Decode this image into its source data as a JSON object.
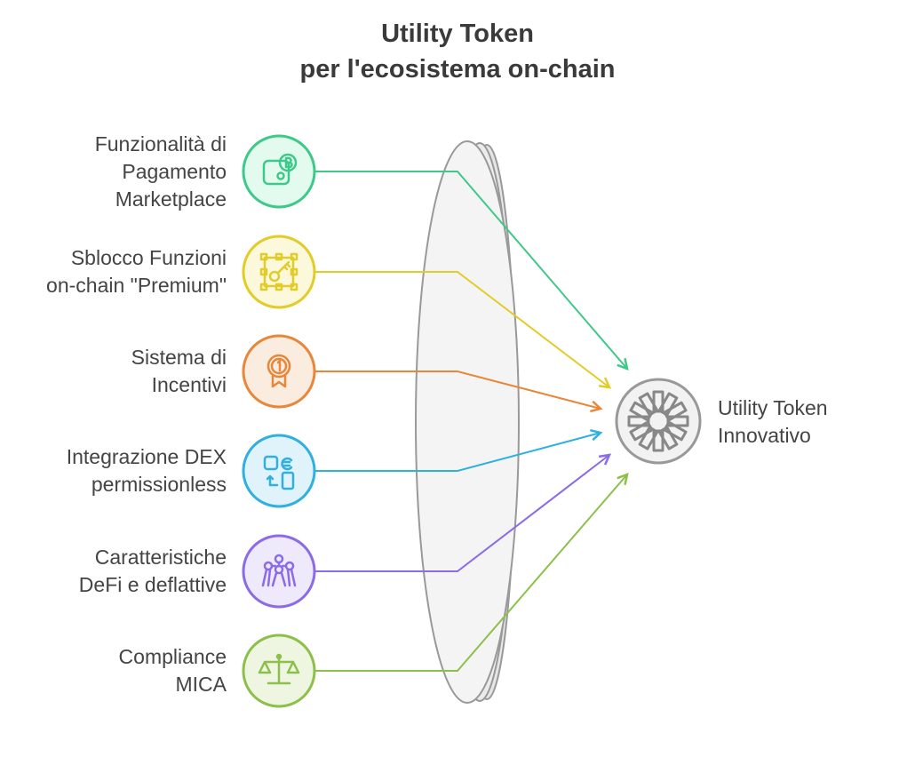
{
  "title": {
    "line1": "Utility Token",
    "line2": "per l'ecosistema on-chain"
  },
  "inputs": [
    {
      "lines": [
        "Funzionalità di",
        "Pagamento",
        "Marketplace"
      ],
      "icon": "wallet-bitcoin-icon",
      "color": "#3ec98a",
      "fill": "#e3fbee"
    },
    {
      "lines": [
        "Sblocco Funzioni",
        "on-chain \"Premium\""
      ],
      "icon": "key-frame-icon",
      "color": "#e2cc28",
      "fill": "#fbf8dc"
    },
    {
      "lines": [
        "Sistema di",
        "Incentivi"
      ],
      "icon": "medal-icon",
      "color": "#e8873a",
      "fill": "#fbece0"
    },
    {
      "lines": [
        "Integrazione DEX",
        "permissionless"
      ],
      "icon": "exchange-icon",
      "color": "#2fb0e0",
      "fill": "#e0f3fb"
    },
    {
      "lines": [
        "Caratteristiche",
        "DeFi e deflattive"
      ],
      "icon": "network-people-icon",
      "color": "#8b6be8",
      "fill": "#eeeafb"
    },
    {
      "lines": [
        "Compliance",
        "MICA"
      ],
      "icon": "scales-icon",
      "color": "#8cc04a",
      "fill": "#eef6e2"
    }
  ],
  "output": {
    "lines": [
      "Utility Token",
      "Innovativo"
    ],
    "icon": "starburst-icon",
    "color": "#999999"
  }
}
